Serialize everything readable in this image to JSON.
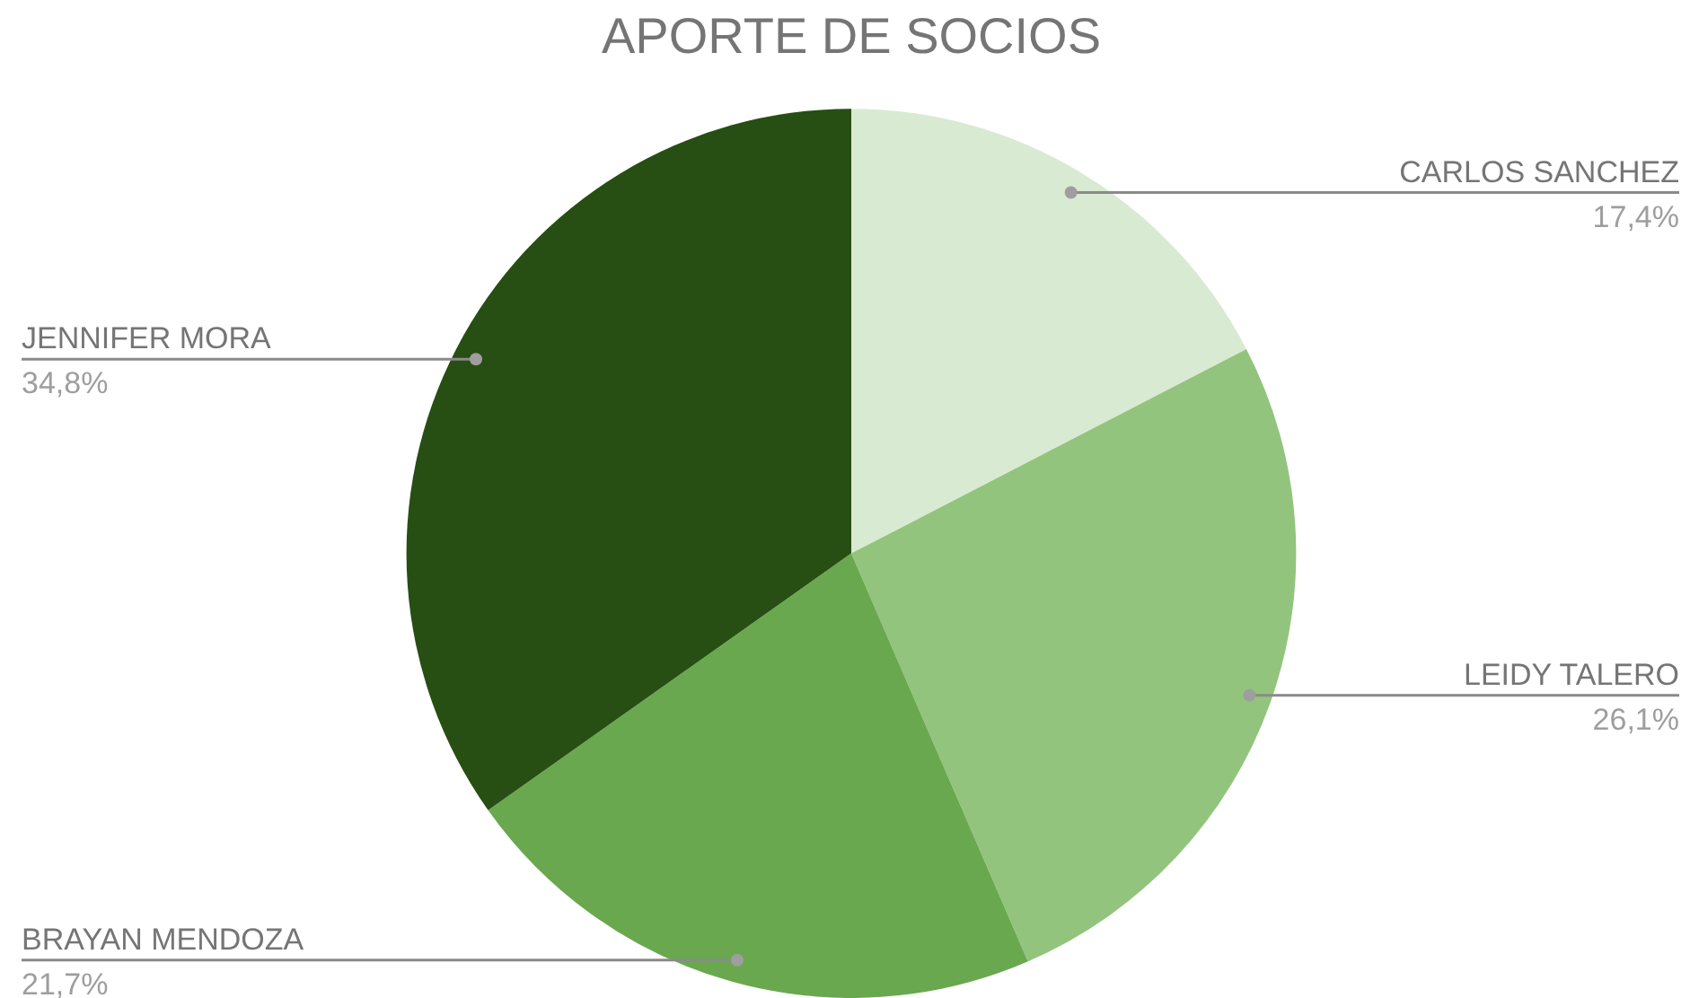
{
  "chart_data": {
    "type": "pie",
    "title": "APORTE DE SOCIOS",
    "categories": [
      "CARLOS SANCHEZ",
      "LEIDY TALERO",
      "BRAYAN MENDOZA",
      "JENNIFER MORA"
    ],
    "values": [
      17.4,
      26.1,
      21.7,
      34.8
    ],
    "colors": [
      "#d9ead3",
      "#93c47d",
      "#6aa84f",
      "#274e13"
    ],
    "value_labels": [
      "17,4%",
      "26,1%",
      "21,7%",
      "34,8%"
    ],
    "legend": false
  }
}
